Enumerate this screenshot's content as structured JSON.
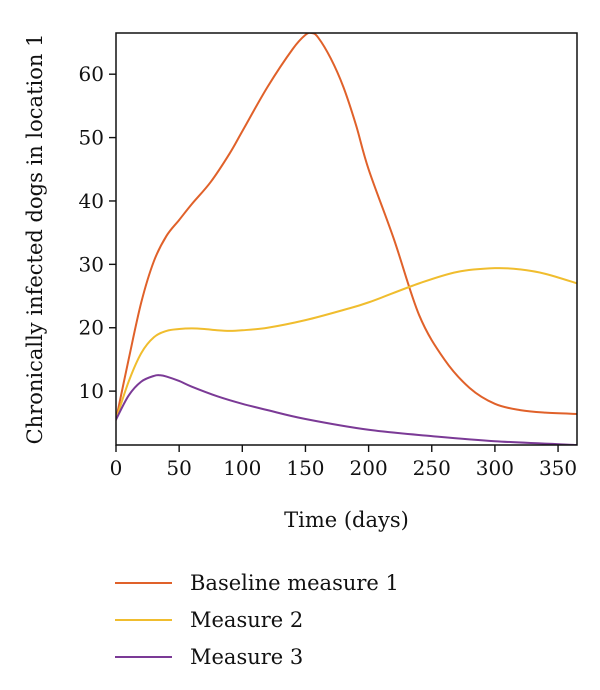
{
  "chart_data": {
    "type": "line",
    "title": "",
    "xlabel": "Time (days)",
    "ylabel": "Chronically infected dogs in location 1",
    "xlim": [
      0,
      365
    ],
    "ylim": [
      1.5,
      66.5
    ],
    "xticks": [
      0,
      50,
      100,
      150,
      200,
      250,
      300,
      350
    ],
    "yticks": [
      10,
      20,
      30,
      40,
      50,
      60
    ],
    "grid": false,
    "legend_position": "bottom",
    "series": [
      {
        "name": "Baseline measure 1",
        "color": "#e0612a",
        "x": [
          0,
          10,
          20,
          30,
          40,
          50,
          60,
          75,
          90,
          100,
          120,
          140,
          150,
          155,
          160,
          170,
          180,
          190,
          200,
          220,
          240,
          260,
          280,
          300,
          320,
          340,
          365
        ],
        "y": [
          5.5,
          15,
          24,
          30.5,
          34.5,
          37,
          39.5,
          43,
          47.5,
          51,
          58,
          64,
          66.2,
          66.5,
          65.8,
          62.5,
          58,
          52,
          45,
          34,
          22,
          15,
          10.5,
          8,
          7,
          6.6,
          6.4
        ]
      },
      {
        "name": "Measure 2",
        "color": "#f0bd2e",
        "x": [
          0,
          10,
          20,
          30,
          40,
          50,
          60,
          70,
          80,
          90,
          100,
          120,
          150,
          180,
          200,
          240,
          270,
          300,
          320,
          340,
          365
        ],
        "y": [
          5.5,
          11.5,
          16,
          18.5,
          19.5,
          19.8,
          19.9,
          19.8,
          19.6,
          19.5,
          19.6,
          20,
          21.2,
          22.8,
          24,
          27,
          28.8,
          29.4,
          29.2,
          28.5,
          27
        ]
      },
      {
        "name": "Measure 3",
        "color": "#7b3a96",
        "x": [
          0,
          10,
          20,
          30,
          35,
          40,
          50,
          60,
          80,
          100,
          120,
          150,
          200,
          250,
          300,
          365
        ],
        "y": [
          5.5,
          9.3,
          11.5,
          12.4,
          12.5,
          12.3,
          11.6,
          10.7,
          9.2,
          8,
          7,
          5.6,
          3.9,
          2.9,
          2.1,
          1.5
        ]
      }
    ]
  }
}
